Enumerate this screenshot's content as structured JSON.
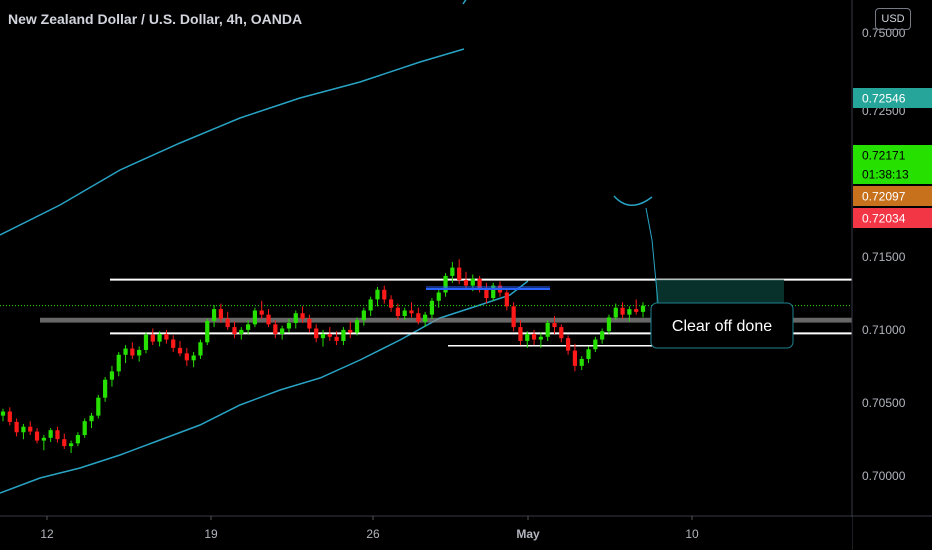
{
  "chart_title": "New Zealand Dollar / U.S. Dollar, 4h, OANDA",
  "currency_button": "USD",
  "colors": {
    "up": "#26e000",
    "down": "#ff1a1a",
    "channel": "#29a3c4",
    "background": "#000000"
  },
  "chart_data": {
    "type": "candlestick",
    "title": "New Zealand Dollar / U.S. Dollar, 4h, OANDA",
    "ylim": [
      0.6965,
      0.7627
    ],
    "price_axis_ticks": [
      "0.75000",
      "0.72500",
      "0.71500",
      "0.71000",
      "0.70500",
      "0.70000"
    ],
    "time_axis_ticks": [
      "12",
      "19",
      "26",
      "May",
      "10"
    ],
    "price_labels": [
      {
        "text": "0.72546",
        "color": "#26a69a",
        "value": 0.72546
      },
      {
        "text": "0.72171",
        "color": "#26e000",
        "value": 0.72171
      },
      {
        "text": "01:38:13",
        "color": "#26e000",
        "value": 0.72135
      },
      {
        "text": "0.72097",
        "color": "#c7711d",
        "value": 0.72097
      },
      {
        "text": "0.72034",
        "color": "#f23645",
        "value": 0.72034
      }
    ],
    "annotation": "Clear off done",
    "horizontal_levels": [
      0.72546,
      0.7177,
      0.7159
    ],
    "support_zone": [
      0.71925,
      0.71995
    ],
    "candles": [
      [
        0.7058,
        0.7068,
        0.705,
        0.7064
      ],
      [
        0.7064,
        0.707,
        0.7044,
        0.7049
      ],
      [
        0.7049,
        0.7054,
        0.7028,
        0.7034
      ],
      [
        0.7034,
        0.7046,
        0.7024,
        0.7042
      ],
      [
        0.7042,
        0.705,
        0.703,
        0.7035
      ],
      [
        0.7035,
        0.704,
        0.7018,
        0.7022
      ],
      [
        0.7022,
        0.703,
        0.7008,
        0.7026
      ],
      [
        0.7026,
        0.704,
        0.702,
        0.7037
      ],
      [
        0.7037,
        0.7042,
        0.7019,
        0.7024
      ],
      [
        0.7024,
        0.7032,
        0.701,
        0.7014
      ],
      [
        0.7014,
        0.7022,
        0.7004,
        0.7018
      ],
      [
        0.7018,
        0.7034,
        0.7014,
        0.703
      ],
      [
        0.703,
        0.7054,
        0.7026,
        0.705
      ],
      [
        0.705,
        0.7062,
        0.704,
        0.7058
      ],
      [
        0.7058,
        0.7088,
        0.7054,
        0.7084
      ],
      [
        0.7084,
        0.7114,
        0.7078,
        0.711
      ],
      [
        0.711,
        0.713,
        0.71,
        0.7122
      ],
      [
        0.7122,
        0.715,
        0.7115,
        0.7146
      ],
      [
        0.7146,
        0.716,
        0.7134,
        0.7155
      ],
      [
        0.7155,
        0.7164,
        0.714,
        0.7145
      ],
      [
        0.7145,
        0.7158,
        0.7136,
        0.7153
      ],
      [
        0.7153,
        0.7178,
        0.7148,
        0.7175
      ],
      [
        0.7175,
        0.7184,
        0.716,
        0.7165
      ],
      [
        0.7165,
        0.718,
        0.7158,
        0.7176
      ],
      [
        0.7176,
        0.7182,
        0.7162,
        0.7168
      ],
      [
        0.7168,
        0.7174,
        0.715,
        0.7156
      ],
      [
        0.7156,
        0.7166,
        0.7144,
        0.7148
      ],
      [
        0.7148,
        0.7156,
        0.713,
        0.7138
      ],
      [
        0.7138,
        0.715,
        0.7128,
        0.7145
      ],
      [
        0.7145,
        0.7168,
        0.714,
        0.7164
      ],
      [
        0.7164,
        0.7198,
        0.716,
        0.7195
      ],
      [
        0.7195,
        0.7218,
        0.7186,
        0.7212
      ],
      [
        0.7212,
        0.722,
        0.7192,
        0.7198
      ],
      [
        0.7198,
        0.7208,
        0.7182,
        0.7186
      ],
      [
        0.7186,
        0.7194,
        0.717,
        0.7176
      ],
      [
        0.7176,
        0.7186,
        0.7168,
        0.7182
      ],
      [
        0.7182,
        0.7196,
        0.7176,
        0.719
      ],
      [
        0.719,
        0.7214,
        0.7186,
        0.721
      ],
      [
        0.721,
        0.7224,
        0.7198,
        0.7204
      ],
      [
        0.7204,
        0.7212,
        0.7186,
        0.719
      ],
      [
        0.719,
        0.7196,
        0.717,
        0.7176
      ],
      [
        0.7176,
        0.7188,
        0.7168,
        0.7184
      ],
      [
        0.7184,
        0.7198,
        0.7178,
        0.7192
      ],
      [
        0.7192,
        0.721,
        0.7184,
        0.7206
      ],
      [
        0.7206,
        0.7216,
        0.7192,
        0.7198
      ],
      [
        0.7198,
        0.7204,
        0.7178,
        0.7184
      ],
      [
        0.7184,
        0.719,
        0.7164,
        0.717
      ],
      [
        0.717,
        0.7182,
        0.7158,
        0.7176
      ],
      [
        0.7176,
        0.7186,
        0.7166,
        0.7172
      ],
      [
        0.7172,
        0.718,
        0.716,
        0.7166
      ],
      [
        0.7166,
        0.7186,
        0.716,
        0.7182
      ],
      [
        0.7182,
        0.7194,
        0.717,
        0.7178
      ],
      [
        0.7178,
        0.72,
        0.7174,
        0.7196
      ],
      [
        0.7196,
        0.7214,
        0.7188,
        0.721
      ],
      [
        0.721,
        0.723,
        0.7202,
        0.7226
      ],
      [
        0.7226,
        0.7244,
        0.7216,
        0.724
      ],
      [
        0.724,
        0.7246,
        0.722,
        0.7226
      ],
      [
        0.7226,
        0.7232,
        0.7208,
        0.7214
      ],
      [
        0.7214,
        0.722,
        0.7196,
        0.7202
      ],
      [
        0.7202,
        0.7214,
        0.7196,
        0.721
      ],
      [
        0.721,
        0.7222,
        0.72,
        0.7206
      ],
      [
        0.7206,
        0.7214,
        0.719,
        0.7194
      ],
      [
        0.7194,
        0.7208,
        0.7186,
        0.7204
      ],
      [
        0.7204,
        0.7228,
        0.7198,
        0.7224
      ],
      [
        0.7224,
        0.724,
        0.7214,
        0.7236
      ],
      [
        0.7236,
        0.7264,
        0.723,
        0.726
      ],
      [
        0.726,
        0.728,
        0.725,
        0.7272
      ],
      [
        0.7272,
        0.7284,
        0.7248,
        0.7254
      ],
      [
        0.7254,
        0.7266,
        0.724,
        0.7246
      ],
      [
        0.7246,
        0.7262,
        0.7238,
        0.7256
      ],
      [
        0.7256,
        0.726,
        0.7236,
        0.7242
      ],
      [
        0.7242,
        0.725,
        0.722,
        0.7228
      ],
      [
        0.7228,
        0.725,
        0.7224,
        0.7246
      ],
      [
        0.7246,
        0.7252,
        0.723,
        0.7236
      ],
      [
        0.7236,
        0.7242,
        0.721,
        0.7216
      ],
      [
        0.7216,
        0.7222,
        0.718,
        0.7186
      ],
      [
        0.7186,
        0.7196,
        0.716,
        0.7166
      ],
      [
        0.7166,
        0.718,
        0.7156,
        0.7176
      ],
      [
        0.7176,
        0.7182,
        0.716,
        0.7168
      ],
      [
        0.7168,
        0.7178,
        0.7156,
        0.7172
      ],
      [
        0.7172,
        0.7196,
        0.7166,
        0.7192
      ],
      [
        0.7192,
        0.7202,
        0.7176,
        0.7186
      ],
      [
        0.7186,
        0.719,
        0.7164,
        0.717
      ],
      [
        0.717,
        0.7174,
        0.7146,
        0.7152
      ],
      [
        0.7152,
        0.7162,
        0.7122,
        0.713
      ],
      [
        0.713,
        0.7144,
        0.7124,
        0.714
      ],
      [
        0.714,
        0.7158,
        0.7134,
        0.7154
      ],
      [
        0.7154,
        0.7172,
        0.715,
        0.7168
      ],
      [
        0.7168,
        0.7184,
        0.7162,
        0.718
      ],
      [
        0.718,
        0.7204,
        0.7176,
        0.72
      ],
      [
        0.72,
        0.722,
        0.7196,
        0.7214
      ],
      [
        0.7214,
        0.7222,
        0.7198,
        0.7204
      ],
      [
        0.7204,
        0.7216,
        0.7194,
        0.7212
      ],
      [
        0.7212,
        0.7226,
        0.7204,
        0.7208
      ],
      [
        0.7208,
        0.7222,
        0.72,
        0.7217
      ]
    ]
  }
}
